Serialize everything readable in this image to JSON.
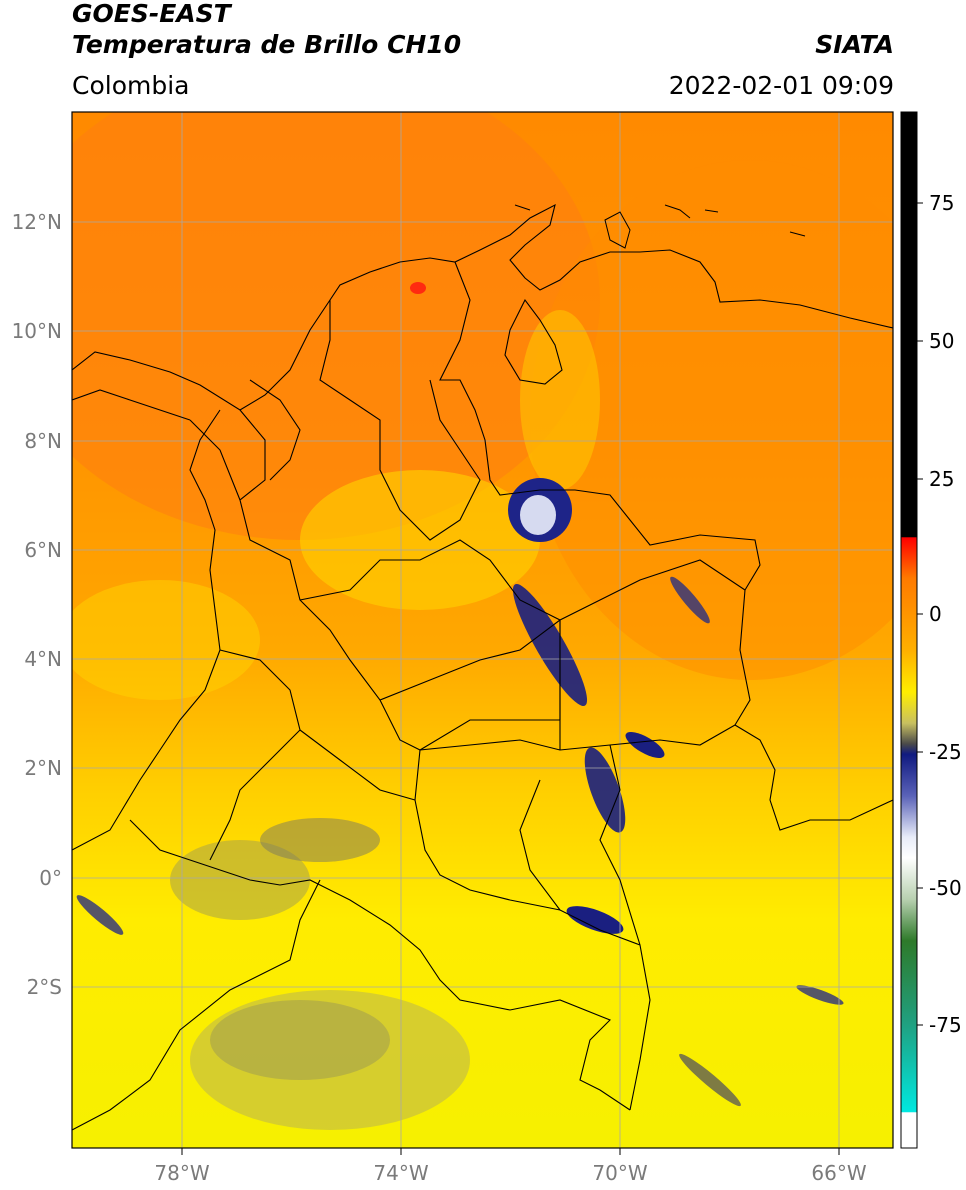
{
  "header": {
    "title_line1": "GOES-EAST",
    "title_line2": "Temperatura de Brillo CH10",
    "agency": "SIATA",
    "region": "Colombia",
    "timestamp": "2022-02-01 09:09"
  },
  "map": {
    "lon_range": [
      -80,
      -65
    ],
    "lat_range": [
      -5.0,
      14.0
    ],
    "lat_ticks": [
      {
        "value": 12,
        "label": "12°N"
      },
      {
        "value": 10,
        "label": "10°N"
      },
      {
        "value": 8,
        "label": "8°N"
      },
      {
        "value": 6,
        "label": "6°N"
      },
      {
        "value": 4,
        "label": "4°N"
      },
      {
        "value": 2,
        "label": "2°N"
      },
      {
        "value": 0,
        "label": "0°"
      },
      {
        "value": -2,
        "label": "2°S"
      }
    ],
    "lon_ticks": [
      {
        "value": -78,
        "label": "78°W"
      },
      {
        "value": -74,
        "label": "74°W"
      },
      {
        "value": -70,
        "label": "70°W"
      },
      {
        "value": -66,
        "label": "66°W"
      }
    ],
    "grid": true,
    "colors": {
      "warm_orange": "#ff9a00",
      "red_orange": "#ff7a10",
      "yellow": "#ffee00",
      "olive": "#9c9a5a",
      "deep_blue": "#1a1f80",
      "white_blue": "#d8dcf0",
      "grid": "#a8a8a8",
      "border": "#000000"
    }
  },
  "colorbar": {
    "range": [
      -95,
      90
    ],
    "ticks": [
      {
        "value": 75,
        "label": "75"
      },
      {
        "value": 50,
        "label": "50"
      },
      {
        "value": 25,
        "label": "25"
      },
      {
        "value": 0,
        "label": "0"
      },
      {
        "value": -25,
        "label": "-25"
      },
      {
        "value": -50,
        "label": "-50"
      },
      {
        "value": -75,
        "label": "-75"
      }
    ]
  }
}
